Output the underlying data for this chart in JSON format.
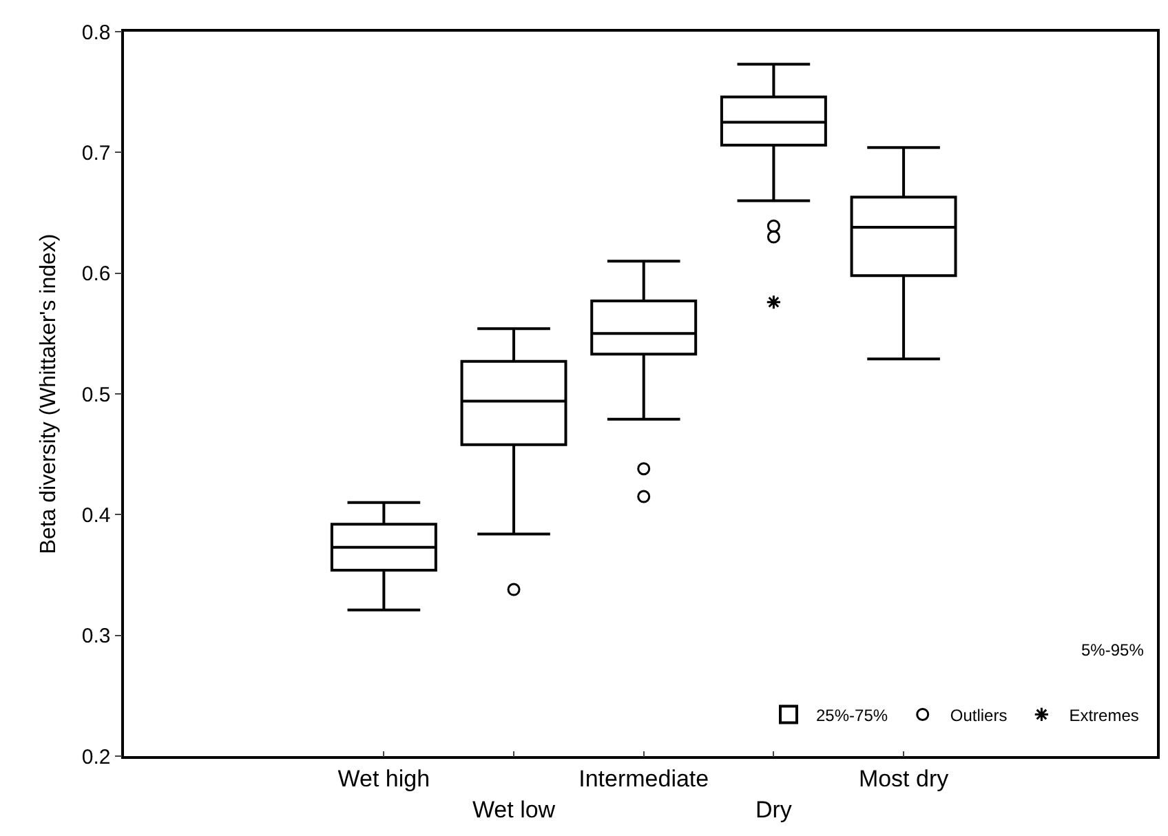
{
  "chart_data": {
    "type": "box",
    "ylabel": "Beta diversity (Whittaker's index)",
    "categories": [
      null,
      "Wet high",
      "Wet low",
      "Intermediate",
      "Dry",
      "Most dry",
      null
    ],
    "ylim": [
      0.2,
      0.8
    ],
    "yticks": [
      0.2,
      0.3,
      0.4,
      0.5,
      0.6,
      0.7,
      0.8
    ],
    "legend": "bottom right",
    "annotations": [
      "5%-95%"
    ],
    "series": [
      {
        "name": "25%-75%",
        "color": "#000000",
        "boxes": [
          null,
          {
            "low": 0.321,
            "q1": 0.354,
            "median": 0.373,
            "q3": 0.392,
            "high": 0.41
          },
          {
            "low": 0.384,
            "q1": 0.458,
            "median": 0.494,
            "q3": 0.527,
            "high": 0.554
          },
          {
            "low": 0.479,
            "q1": 0.533,
            "median": 0.55,
            "q3": 0.577,
            "high": 0.61
          },
          {
            "low": 0.66,
            "q1": 0.706,
            "median": 0.725,
            "q3": 0.746,
            "high": 0.773
          },
          {
            "low": 0.529,
            "q1": 0.598,
            "median": 0.638,
            "q3": 0.663,
            "high": 0.704
          },
          null
        ]
      },
      {
        "type": "scatter",
        "name": "Outliers",
        "color": "#000000",
        "marker": "circle",
        "x": [
          "Wet low",
          "Intermediate",
          "Intermediate",
          "Dry",
          "Dry"
        ],
        "values": [
          0.338,
          0.438,
          0.415,
          0.639,
          0.63
        ]
      },
      {
        "type": "scatter",
        "name": "Extremes",
        "color": "#000000",
        "marker": "cross",
        "x": [
          "Dry"
        ],
        "values": [
          0.576
        ]
      }
    ]
  }
}
